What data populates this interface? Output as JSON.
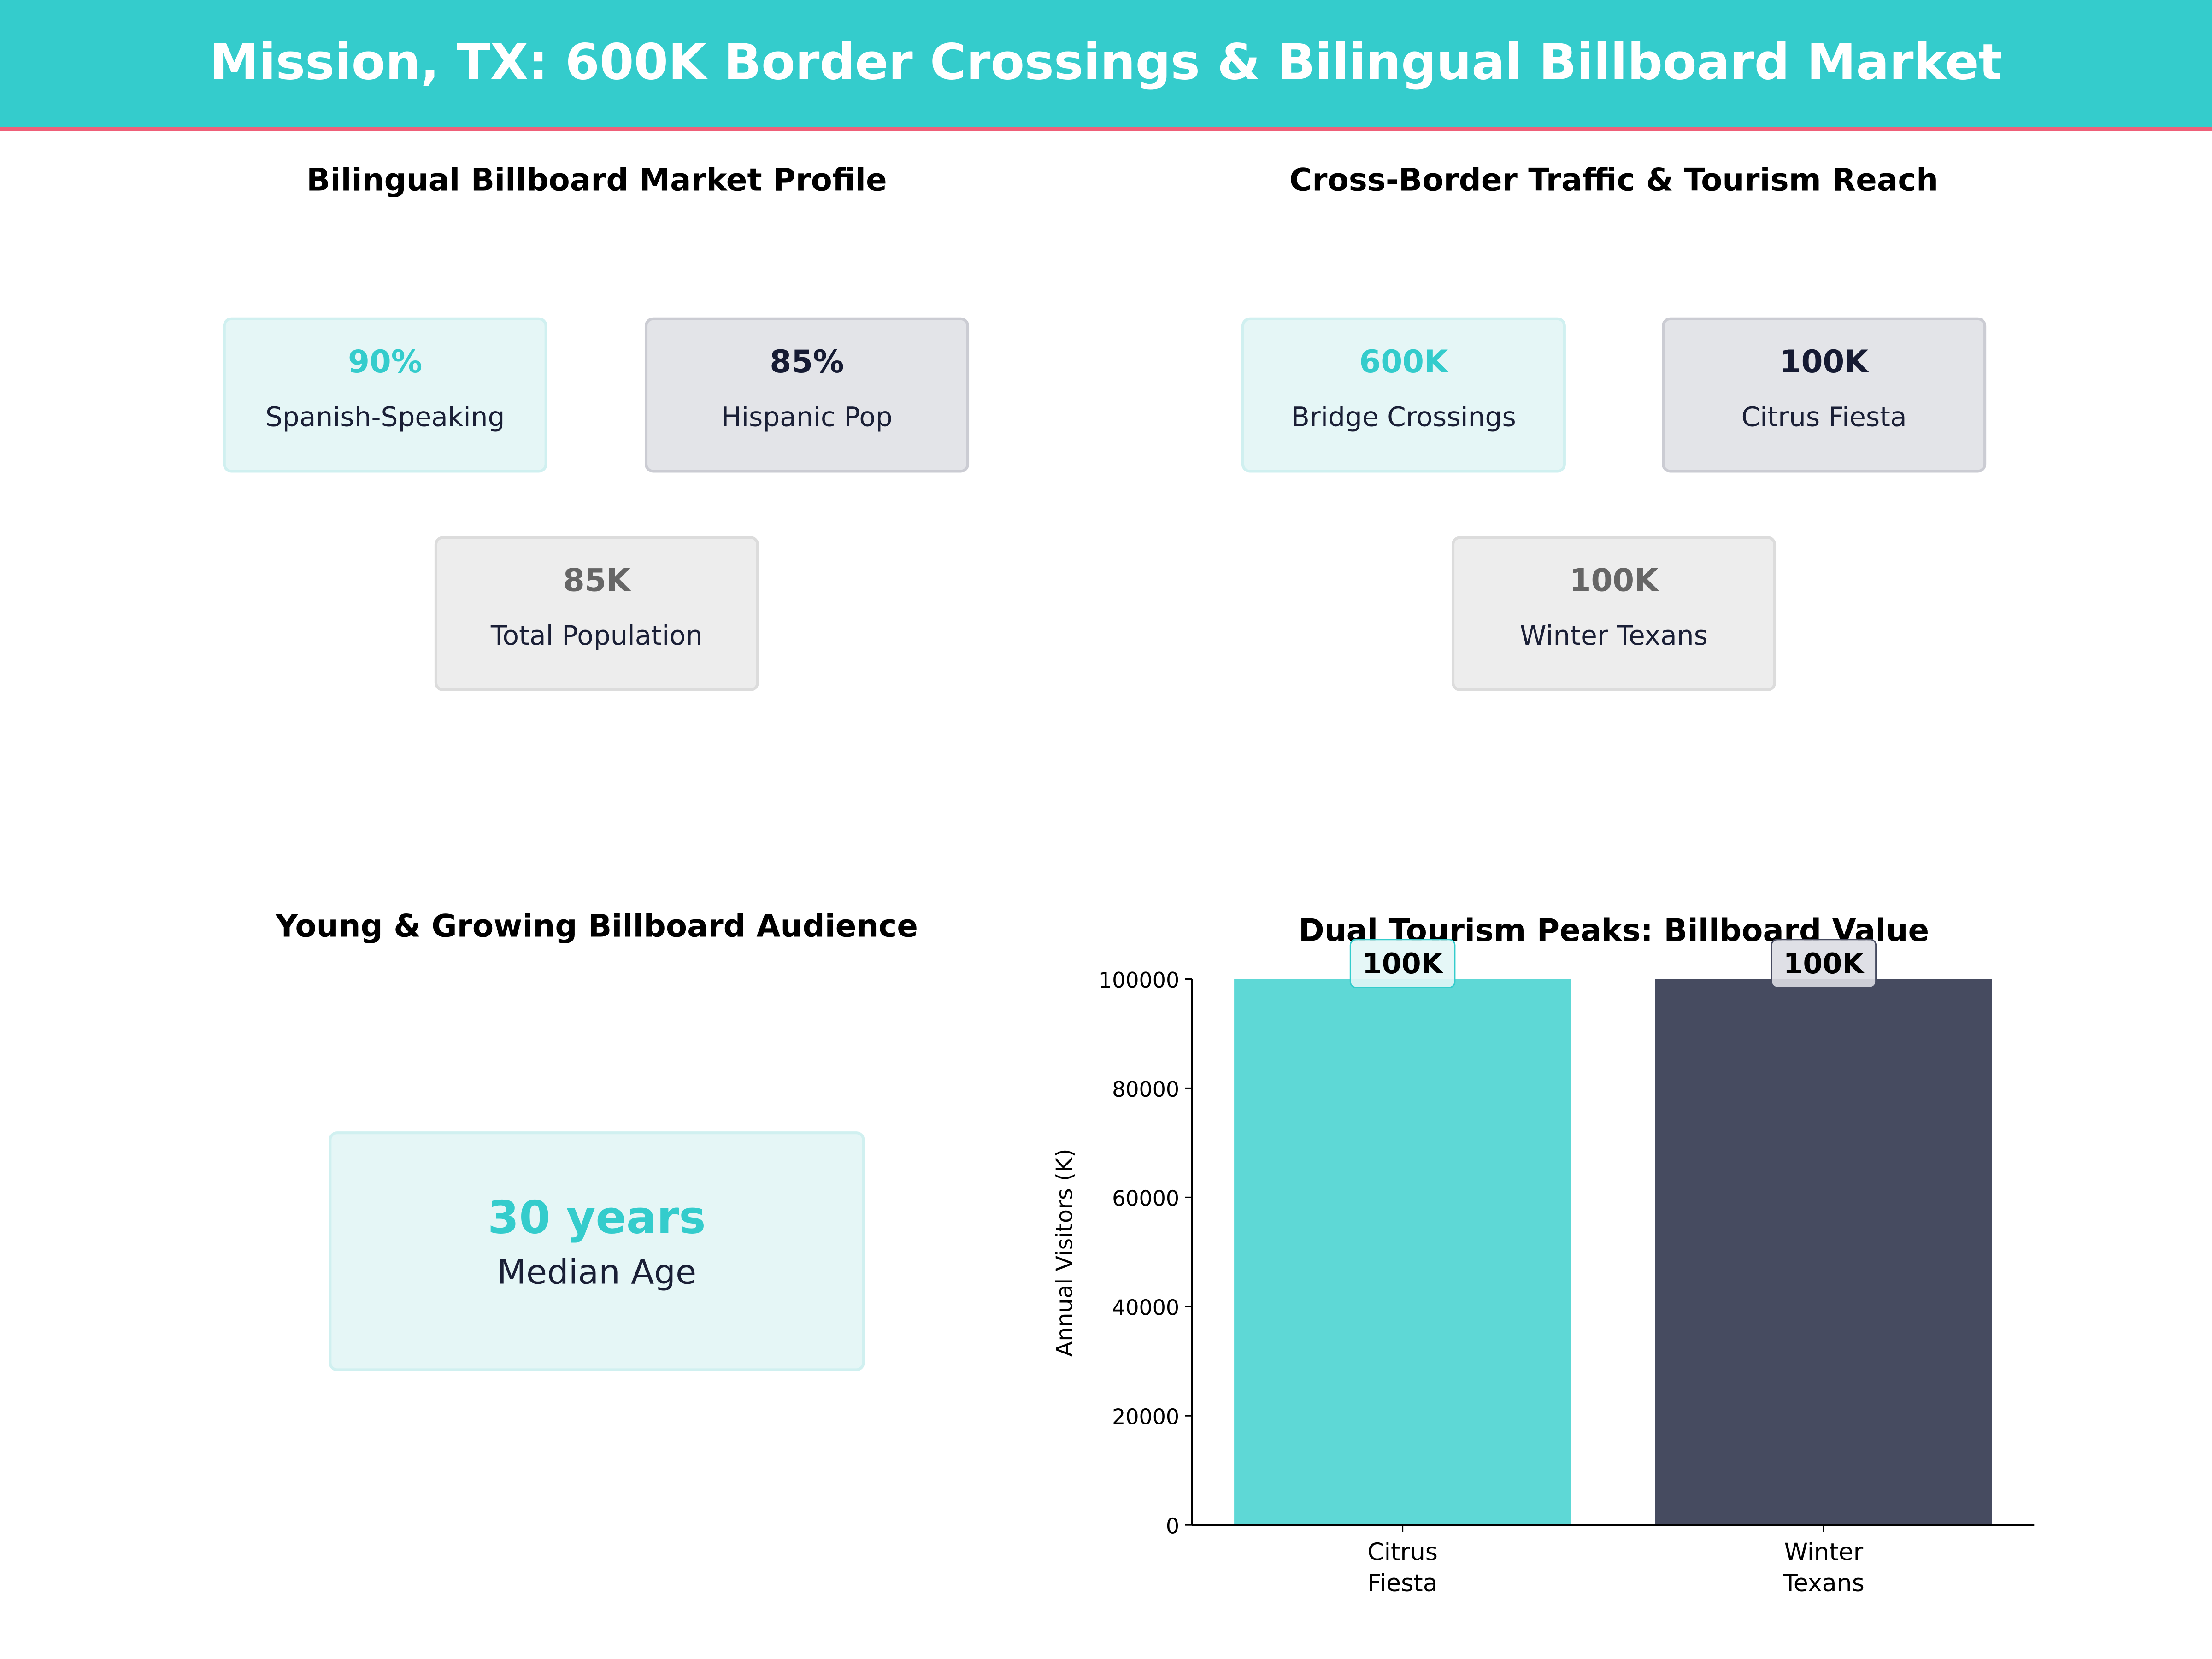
{
  "header": {
    "title": "Mission, TX: 600K Border Crossings & Bilingual Billboard Market"
  },
  "colors": {
    "teal": "#34CCCC",
    "accent_line": "#EF6079",
    "navy": "#161B33",
    "bar1": "#5ED8D6",
    "bar2": "#464B60"
  },
  "market_profile": {
    "title": "Bilingual Billboard Market Profile",
    "cards": [
      {
        "value": "90%",
        "label": "Spanish-Speaking"
      },
      {
        "value": "85%",
        "label": "Hispanic Pop"
      },
      {
        "value": "85K",
        "label": "Total Population"
      }
    ]
  },
  "traffic": {
    "title": "Cross-Border Traffic & Tourism Reach",
    "cards": [
      {
        "value": "600K",
        "label": "Bridge Crossings"
      },
      {
        "value": "100K",
        "label": "Citrus Fiesta"
      },
      {
        "value": "100K",
        "label": "Winter Texans"
      }
    ]
  },
  "audience": {
    "title": "Young & Growing Billboard Audience",
    "value": "30 years",
    "label": "Median Age"
  },
  "chart_data": {
    "type": "bar",
    "title": "Dual Tourism Peaks: Billboard Value",
    "categories": [
      "Citrus\nFiesta",
      "Winter\nTexans"
    ],
    "category_lines": [
      [
        "Citrus",
        "Fiesta"
      ],
      [
        "Winter",
        "Texans"
      ]
    ],
    "values": [
      100000,
      100000
    ],
    "data_labels": [
      "100K",
      "100K"
    ],
    "bar_colors": [
      "#5ED8D6",
      "#464B60"
    ],
    "xlabel": "",
    "ylabel": "Annual Visitors (K)",
    "ylim": [
      0,
      100000
    ],
    "yticks": [
      0,
      20000,
      40000,
      60000,
      80000,
      100000
    ],
    "grid": false
  }
}
